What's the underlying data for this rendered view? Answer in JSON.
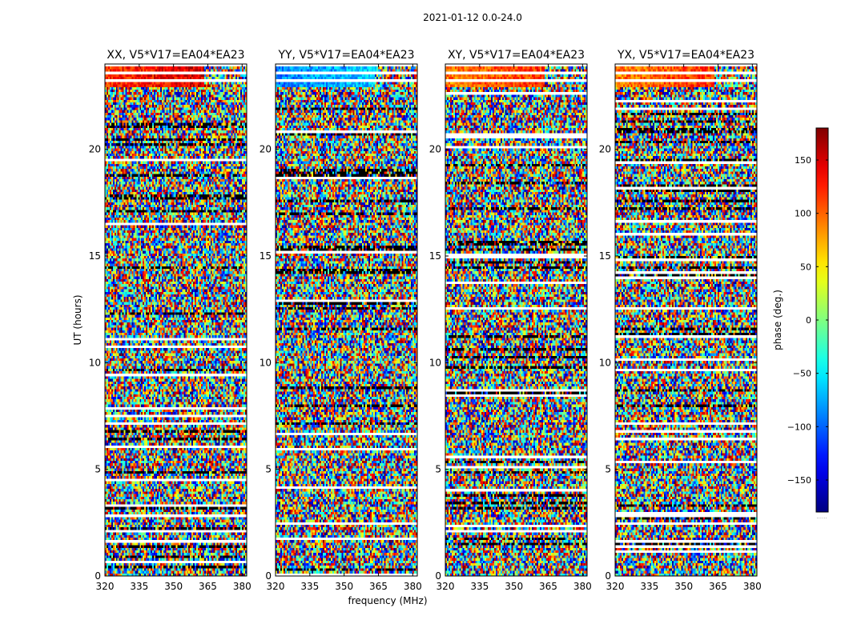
{
  "figure": {
    "suptitle": "2021-01-12 0.0-24.0",
    "xlabel": "frequency (MHz)",
    "ylabel": "UT (hours)"
  },
  "chart_data": {
    "type": "heatmap",
    "title": "2021-01-12 0.0-24.0",
    "xlabel": "frequency (MHz)",
    "ylabel": "UT (hours)",
    "xlim": [
      320,
      382
    ],
    "ylim": [
      0,
      24
    ],
    "xticks": [
      320,
      335,
      350,
      365,
      380
    ],
    "yticks": [
      0,
      5,
      10,
      15,
      20
    ],
    "colormap": "jet",
    "colorbar": {
      "label": "phase (deg.)",
      "range": [
        -180,
        180
      ],
      "ticks": [
        150,
        100,
        50,
        0,
        -50,
        -100,
        -150
      ],
      "tick_labels": [
        "150",
        "100",
        "50",
        "0",
        "−50",
        "−100",
        "−150"
      ],
      "bottom_note": "......"
    },
    "panels": [
      {
        "name": "XX",
        "title": "XX, V5*V17=EA04*EA23",
        "coherent_phase": 120
      },
      {
        "name": "YY",
        "title": "YY, V5*V17=EA04*EA23",
        "coherent_phase": -90
      },
      {
        "name": "XY",
        "title": "XY, V5*V17=EA04*EA23",
        "coherent_phase": 90
      },
      {
        "name": "YX",
        "title": "YX, V5*V17=EA04*EA23",
        "coherent_phase": 90
      }
    ]
  }
}
